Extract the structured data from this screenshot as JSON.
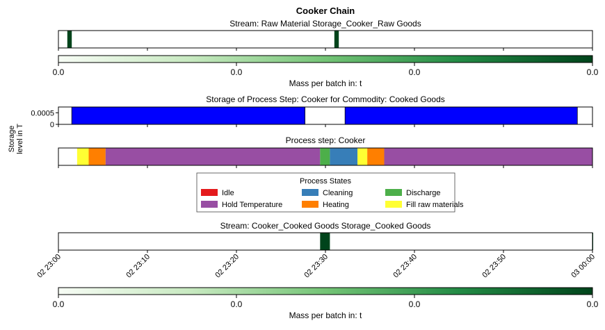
{
  "chart_data": {
    "type": "gantt",
    "title": "Cooker Chain",
    "time_axis": {
      "start": "02 23:00",
      "end": "03 00:00",
      "ticks": [
        "02 23:00",
        "02 23:10",
        "02 23:20",
        "02 23:30",
        "02 23:40",
        "02 23:50",
        "03 00:00"
      ]
    },
    "panels": [
      {
        "id": "stream_in",
        "title": "Stream: Raw Material Storage_Cooker_Raw Goods",
        "type": "event_strip",
        "events": [
          {
            "start": "02 23:01",
            "end": "02 23:01.5"
          },
          {
            "start": "02 23:31",
            "end": "02 23:31.5"
          }
        ],
        "color": "#00441b"
      },
      {
        "id": "storage",
        "title": "Storage of Process Step: Cooker for Commodity: Cooked Goods",
        "type": "storage",
        "ylabel": "Storage\nlevel in T",
        "yticks": [
          "0.0005",
          "0"
        ],
        "ylim": [
          0,
          0.00075
        ],
        "color": "#0000ff",
        "segments": [
          {
            "start": "02 23:01.5",
            "end": "02 23:27.7",
            "value": 0.00075
          },
          {
            "start": "02 23:32.2",
            "end": "02 23:58.3",
            "value": 0.00075
          }
        ]
      },
      {
        "id": "process",
        "title": "Process step: Cooker",
        "type": "state_strip",
        "segments": [
          {
            "state": "Fill raw materials",
            "start": "02 23:02.1",
            "end": "02 23:03.4"
          },
          {
            "state": "Heating",
            "start": "02 23:03.4",
            "end": "02 23:05.3"
          },
          {
            "state": "Hold Temperature",
            "start": "02 23:05.3",
            "end": "02 23:29.4"
          },
          {
            "state": "Discharge",
            "start": "02 23:29.4",
            "end": "02 23:30.5"
          },
          {
            "state": "Cleaning",
            "start": "02 23:30.5",
            "end": "02 23:33.6"
          },
          {
            "state": "Fill raw materials",
            "start": "02 23:33.6",
            "end": "02 23:34.7"
          },
          {
            "state": "Heating",
            "start": "02 23:34.7",
            "end": "02 23:36.6"
          },
          {
            "state": "Hold Temperature",
            "start": "02 23:36.6",
            "end": "02 24:00.7"
          },
          {
            "state": "Discharge",
            "start": "02 24:00.7",
            "end": "02 24:01.8"
          },
          {
            "state": "Cleaning",
            "start": "02 24:01.8",
            "end": "02 24:05"
          }
        ]
      },
      {
        "id": "stream_out",
        "title": "Stream: Cooker_Cooked Goods Storage_Cooked Goods",
        "type": "event_strip",
        "events": [
          {
            "start": "02 23:29.4",
            "end": "02 23:30.5"
          },
          {
            "start": "02 24:00.7",
            "end": "02 24:01.8"
          }
        ],
        "color": "#00441b"
      }
    ],
    "legend": {
      "title": "Process States",
      "placement": "center",
      "items": [
        {
          "label": "Idle",
          "color": "#e41a1c"
        },
        {
          "label": "Cleaning",
          "color": "#377eb8"
        },
        {
          "label": "Discharge",
          "color": "#4daf4a"
        },
        {
          "label": "Hold Temperature",
          "color": "#984ea3"
        },
        {
          "label": "Heating",
          "color": "#ff7f00"
        },
        {
          "label": "Fill raw materials",
          "color": "#ffff33"
        }
      ]
    },
    "colorbars": [
      {
        "label": "Mass per batch in: t",
        "ticks": [
          "0.0",
          "0.0",
          "0.0",
          "0.0"
        ],
        "colors": [
          "#f7fcf5",
          "#c7e9c0",
          "#74c476",
          "#238b45",
          "#00441b"
        ]
      },
      {
        "label": "Mass per batch in: t",
        "ticks": [
          "0.0",
          "0.0",
          "0.0",
          "0.0"
        ],
        "colors": [
          "#f7fcf5",
          "#c7e9c0",
          "#74c476",
          "#238b45",
          "#00441b"
        ]
      }
    ]
  }
}
